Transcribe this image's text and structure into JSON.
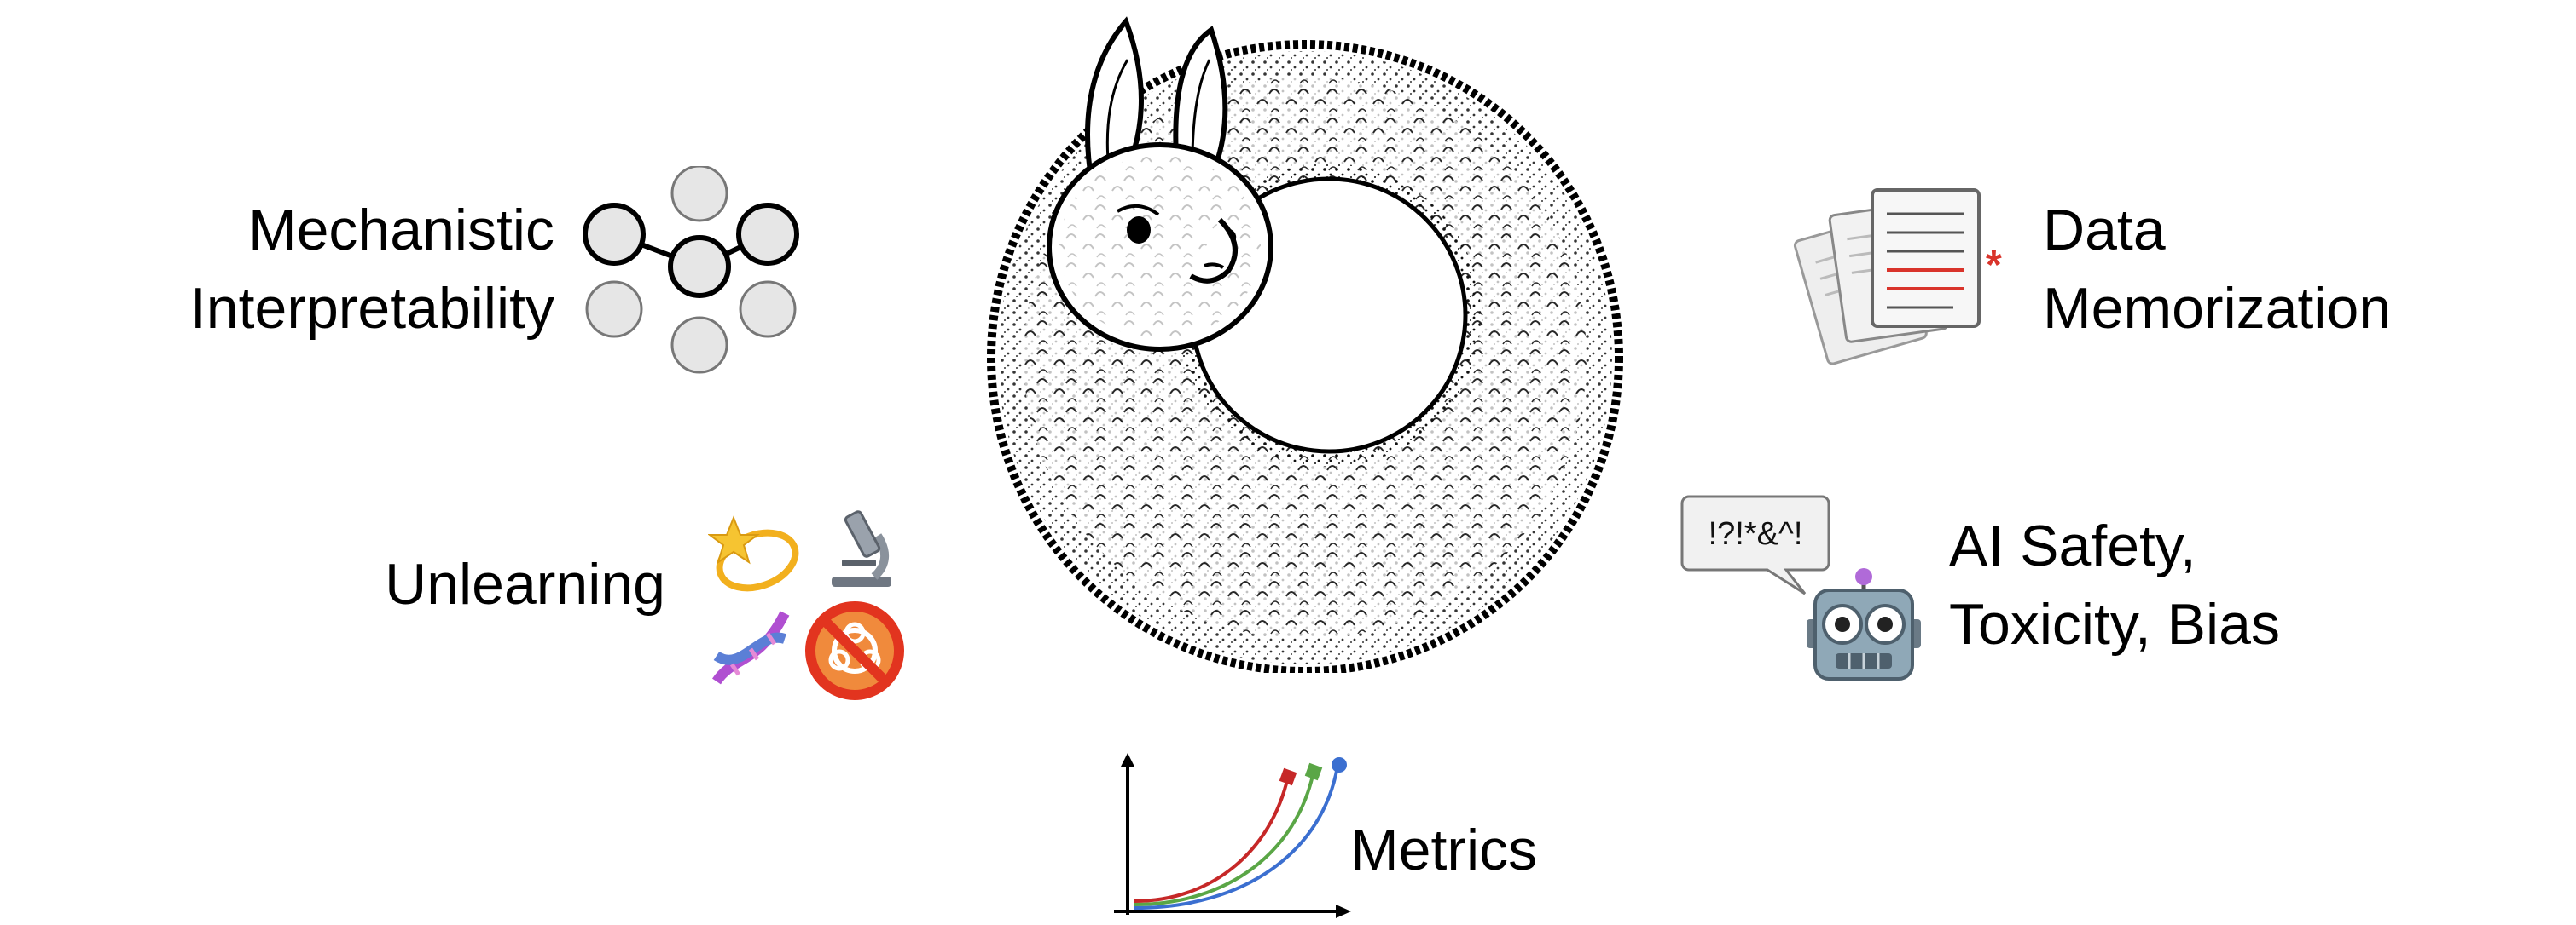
{
  "center": {
    "icon": "llama-ring-icon"
  },
  "topics": {
    "interpretability": {
      "line1": "Mechanistic",
      "line2": "Interpretability",
      "icon": "neural-network-icon"
    },
    "memorization": {
      "line1": "Data",
      "line2": "Memorization",
      "icon": "documents-icon",
      "accent": "#d9342b"
    },
    "unlearning": {
      "label": "Unlearning",
      "icons": [
        "dizzy-star-icon",
        "microscope-icon",
        "dna-icon",
        "no-biohazard-icon"
      ]
    },
    "safety": {
      "line1": "AI Safety,",
      "line2": "Toxicity, Bias",
      "speech_text": "!?!*&^!",
      "icons": [
        "speech-bubble-icon",
        "robot-icon"
      ]
    },
    "metrics": {
      "label": "Metrics",
      "icon": "growth-curves-icon",
      "colors": [
        "#c62828",
        "#5aa646",
        "#3b6fd0"
      ]
    }
  }
}
